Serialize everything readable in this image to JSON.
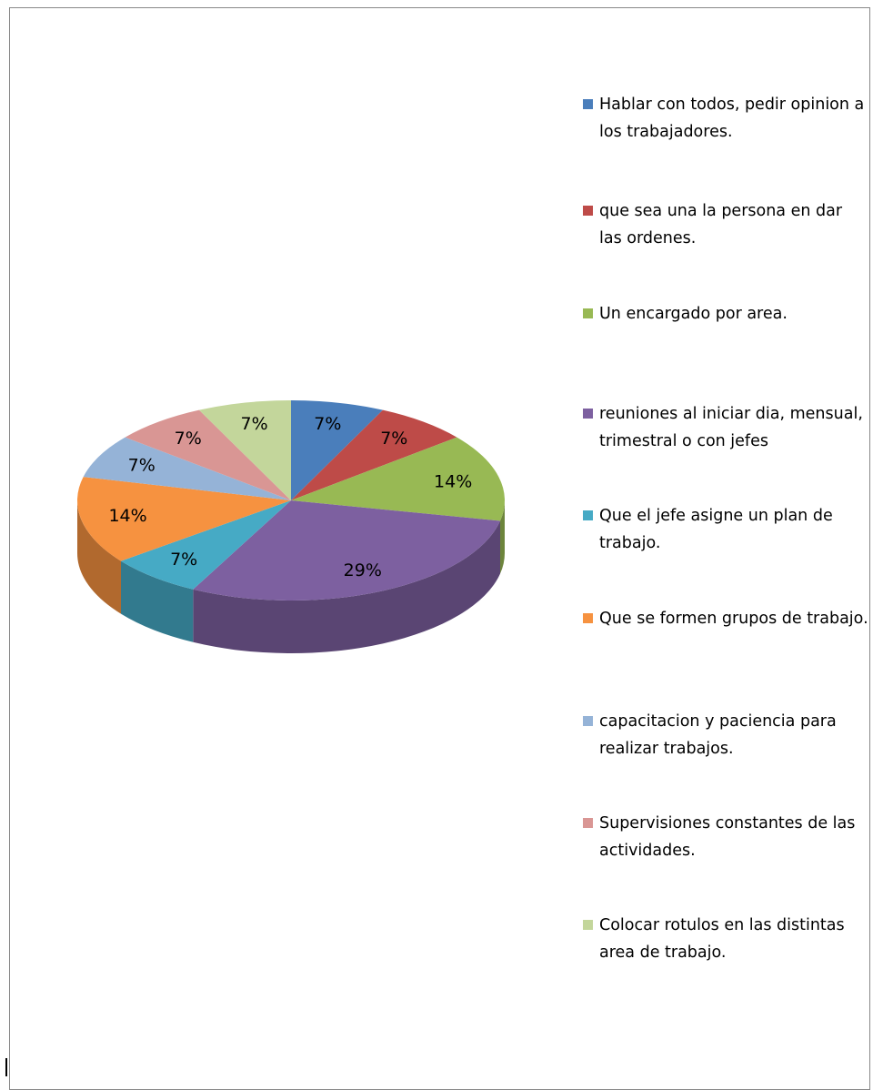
{
  "chart_data": {
    "type": "pie",
    "categories": [
      "Hablar con todos, pedir opinion a los trabajadores.",
      "que sea una la persona en dar las ordenes.",
      "Un encargado por area.",
      "reuniones al iniciar  dia, mensual, trimestral o con jefes",
      "Que el jefe asigne un plan de trabajo.",
      "Que se formen grupos de trabajo.",
      "capacitacion y paciencia para realizar trabajos.",
      "Supervisiones constantes de las actividades.",
      "Colocar rotulos en las distintas area de trabajo."
    ],
    "values": [
      7,
      7,
      14,
      29,
      7,
      14,
      7,
      7,
      7
    ],
    "value_labels": [
      "7%",
      "7%",
      "14%",
      "29%",
      "7%",
      "14%",
      "7%",
      "7%",
      "7%"
    ],
    "colors": [
      "#4a7ebb",
      "#be4b48",
      "#98b954",
      "#7d60a0",
      "#46aac5",
      "#f69240",
      "#95b3d7",
      "#d99694",
      "#c3d69b"
    ],
    "legend": "right"
  }
}
